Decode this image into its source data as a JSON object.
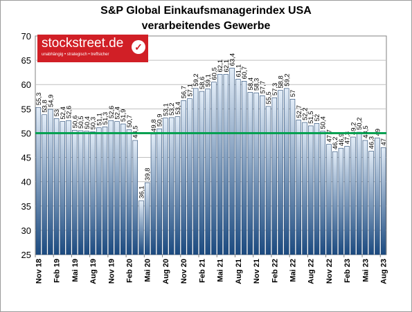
{
  "title_line1": "S&P Global Einkaufsmanagerindex USA",
  "title_line2": "verarbeitendes Gewerbe",
  "logo": {
    "name": "stockstreet.de",
    "tagline": "unabhängig • strategisch • treffsicher",
    "icon": "check-mark-icon"
  },
  "colors": {
    "bar_light": "#cfe0f1",
    "bar_dark": "#1d4f86",
    "reference_line": "#00a050",
    "plot_bg": "#ffffff",
    "grid": "#bfbfbf"
  },
  "chart_data": {
    "type": "bar",
    "title": "S&P Global Einkaufsmanagerindex USA verarbeitendes Gewerbe",
    "ylim": [
      25,
      70
    ],
    "yticks": [
      25,
      30,
      35,
      40,
      45,
      50,
      55,
      60,
      65,
      70
    ],
    "grid": true,
    "reference_line": 50,
    "x_tick_labels": [
      "Nov 18",
      "Feb 19",
      "Mai 19",
      "Aug 19",
      "Nov 19",
      "Feb 20",
      "Mai 20",
      "Aug 20",
      "Nov 20",
      "Feb 21",
      "Mai 21",
      "Aug 21",
      "Nov 21",
      "Feb 22",
      "Mai 22",
      "Aug 22",
      "Nov 22",
      "Feb 23",
      "Mai 23",
      "Aug 23"
    ],
    "values": [
      55.3,
      53.8,
      54.9,
      53.0,
      52.4,
      52.6,
      50.6,
      50.5,
      50.4,
      50.3,
      51.1,
      51.3,
      52.6,
      52.4,
      51.9,
      50.7,
      48.5,
      36.1,
      39.8,
      49.8,
      50.9,
      53.1,
      53.2,
      53.4,
      56.7,
      57.1,
      59.2,
      58.6,
      59.1,
      60.5,
      62.1,
      62.1,
      63.4,
      61.1,
      60.7,
      58.4,
      58.3,
      57.7,
      55.5,
      57.3,
      58.8,
      59.2,
      57.0,
      52.7,
      52.2,
      51.5,
      52.0,
      50.4,
      47.7,
      46.2,
      46.9,
      47.3,
      49.2,
      50.2,
      48.5,
      46.3,
      49.0,
      47.0
    ],
    "value_labels": [
      "55,3",
      "53,8",
      "54,9",
      "53",
      "52,4",
      "52,6",
      "50,6",
      "50,5",
      "50,4",
      "50,3",
      "51,1",
      "51,3",
      "52,6",
      "52,4",
      "51,9",
      "50,7",
      "48,5",
      "36,1",
      "39,8",
      "49,8",
      "50,9",
      "53,1",
      "53,2",
      "53,4",
      "56,7",
      "57,1",
      "59,2",
      "58,6",
      "59,1",
      "60,5",
      "62,1",
      "62,1",
      "63,4",
      "61,1",
      "60,7",
      "58,4",
      "58,3",
      "57,7",
      "55,5",
      "57,3",
      "58,8",
      "59,2",
      "57",
      "52,7",
      "52,2",
      "51,5",
      "52",
      "50,4",
      "47,7",
      "46,2",
      "46,9",
      "47,3",
      "49,2",
      "50,2",
      "48,5",
      "46,3",
      "49",
      "47"
    ]
  }
}
